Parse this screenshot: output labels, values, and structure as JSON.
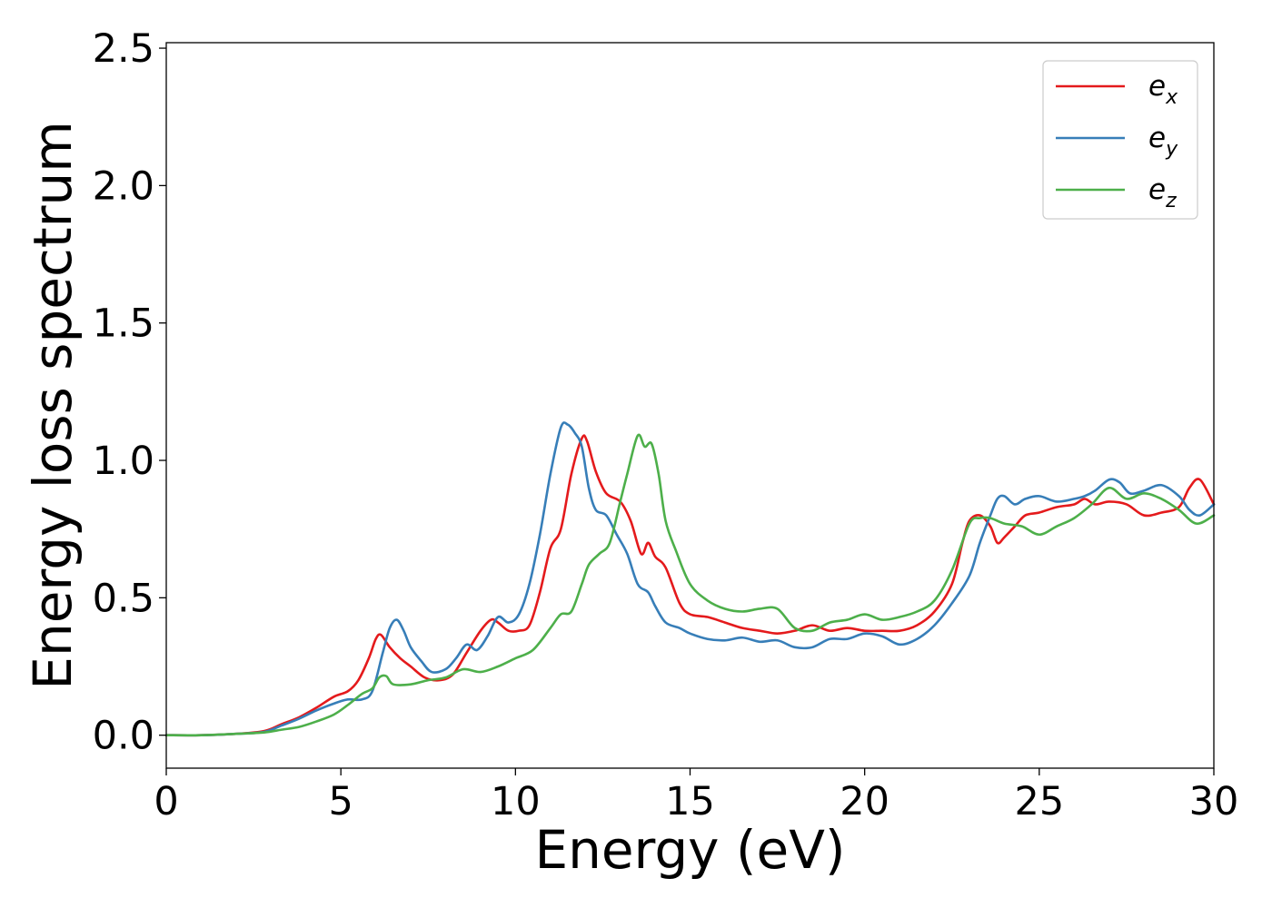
{
  "chart_data": {
    "type": "line",
    "xlabel": "Energy (eV)",
    "ylabel": "Energy loss spectrum",
    "xlim": [
      0,
      30
    ],
    "ylim": [
      -0.12,
      2.52
    ],
    "xticks": [
      0,
      5,
      10,
      15,
      20,
      25,
      30
    ],
    "xtick_labels": [
      "0",
      "5",
      "10",
      "15",
      "20",
      "25",
      "30"
    ],
    "yticks": [
      0.0,
      0.5,
      1.0,
      1.5,
      2.0,
      2.5
    ],
    "ytick_labels": [
      "0.0",
      "0.5",
      "1.0",
      "1.5",
      "2.0",
      "2.5"
    ],
    "grid": false,
    "legend_position": "top-right",
    "series": [
      {
        "name": "e_x",
        "label_base": "e",
        "label_sub": "x",
        "color": "#e41a1c",
        "x": [
          0,
          1,
          2,
          2.8,
          3.3,
          3.8,
          4.3,
          4.8,
          5.2,
          5.5,
          5.8,
          6.0,
          6.15,
          6.4,
          6.7,
          7.0,
          7.4,
          7.8,
          8.2,
          8.6,
          9.0,
          9.3,
          9.5,
          9.8,
          10.1,
          10.4,
          10.7,
          11.0,
          11.3,
          11.6,
          11.9,
          12.05,
          12.3,
          12.6,
          13.0,
          13.3,
          13.6,
          13.8,
          14.0,
          14.3,
          14.7,
          15.0,
          15.5,
          16.0,
          16.5,
          17.0,
          17.5,
          18.0,
          18.5,
          19.0,
          19.5,
          20.0,
          20.5,
          21.0,
          21.5,
          22.0,
          22.5,
          22.8,
          23.0,
          23.3,
          23.6,
          23.8,
          24.0,
          24.3,
          24.6,
          25.0,
          25.5,
          26.0,
          26.3,
          26.6,
          27.0,
          27.5,
          28.0,
          28.5,
          29.0,
          29.3,
          29.6,
          30.0
        ],
        "y": [
          0.0,
          0.0,
          0.005,
          0.015,
          0.04,
          0.065,
          0.1,
          0.14,
          0.16,
          0.2,
          0.28,
          0.35,
          0.365,
          0.32,
          0.28,
          0.25,
          0.21,
          0.2,
          0.22,
          0.3,
          0.38,
          0.42,
          0.41,
          0.38,
          0.38,
          0.4,
          0.52,
          0.68,
          0.75,
          0.95,
          1.08,
          1.07,
          0.96,
          0.88,
          0.85,
          0.78,
          0.66,
          0.7,
          0.65,
          0.61,
          0.48,
          0.44,
          0.43,
          0.41,
          0.39,
          0.38,
          0.37,
          0.38,
          0.4,
          0.38,
          0.39,
          0.38,
          0.38,
          0.38,
          0.4,
          0.45,
          0.55,
          0.7,
          0.78,
          0.8,
          0.76,
          0.7,
          0.72,
          0.76,
          0.8,
          0.81,
          0.83,
          0.84,
          0.86,
          0.84,
          0.85,
          0.84,
          0.8,
          0.81,
          0.83,
          0.9,
          0.93,
          0.84
        ]
      },
      {
        "name": "e_y",
        "label_base": "e",
        "label_sub": "y",
        "color": "#377eb8",
        "x": [
          0,
          1,
          2,
          2.8,
          3.3,
          3.8,
          4.3,
          4.8,
          5.2,
          5.6,
          5.9,
          6.2,
          6.4,
          6.6,
          6.8,
          7.0,
          7.3,
          7.6,
          8.0,
          8.3,
          8.6,
          8.9,
          9.2,
          9.5,
          9.8,
          10.1,
          10.4,
          10.7,
          11.0,
          11.3,
          11.5,
          11.7,
          11.9,
          12.1,
          12.3,
          12.6,
          12.9,
          13.2,
          13.5,
          13.8,
          14.0,
          14.3,
          14.7,
          15.0,
          15.5,
          16.0,
          16.5,
          17.0,
          17.5,
          18.0,
          18.5,
          19.0,
          19.5,
          20.0,
          20.5,
          21.0,
          21.5,
          22.0,
          22.5,
          23.0,
          23.3,
          23.6,
          23.8,
          24.0,
          24.3,
          24.6,
          25.0,
          25.5,
          26.0,
          26.3,
          26.6,
          27.0,
          27.3,
          27.6,
          28.0,
          28.5,
          29.0,
          29.3,
          29.6,
          30.0
        ],
        "y": [
          0.0,
          0.0,
          0.005,
          0.012,
          0.035,
          0.06,
          0.09,
          0.115,
          0.13,
          0.13,
          0.16,
          0.3,
          0.39,
          0.42,
          0.38,
          0.32,
          0.27,
          0.23,
          0.24,
          0.28,
          0.33,
          0.31,
          0.36,
          0.43,
          0.41,
          0.44,
          0.55,
          0.73,
          0.95,
          1.12,
          1.13,
          1.1,
          1.05,
          0.9,
          0.82,
          0.8,
          0.73,
          0.66,
          0.55,
          0.52,
          0.47,
          0.41,
          0.39,
          0.37,
          0.35,
          0.345,
          0.355,
          0.34,
          0.345,
          0.32,
          0.32,
          0.35,
          0.35,
          0.37,
          0.36,
          0.33,
          0.35,
          0.4,
          0.48,
          0.58,
          0.7,
          0.8,
          0.86,
          0.87,
          0.84,
          0.86,
          0.87,
          0.85,
          0.86,
          0.87,
          0.89,
          0.93,
          0.92,
          0.88,
          0.89,
          0.91,
          0.87,
          0.82,
          0.8,
          0.84
        ]
      },
      {
        "name": "e_z",
        "label_base": "e",
        "label_sub": "z",
        "color": "#4daf4a",
        "x": [
          0,
          1,
          2,
          2.8,
          3.3,
          3.8,
          4.3,
          4.8,
          5.2,
          5.6,
          5.9,
          6.1,
          6.3,
          6.5,
          7.0,
          7.5,
          8.0,
          8.5,
          9.0,
          9.5,
          10.0,
          10.5,
          11.0,
          11.3,
          11.6,
          11.9,
          12.1,
          12.4,
          12.7,
          13.0,
          13.2,
          13.5,
          13.7,
          13.9,
          14.1,
          14.3,
          14.6,
          15.0,
          15.5,
          16.0,
          16.5,
          17.0,
          17.5,
          18.0,
          18.5,
          19.0,
          19.5,
          20.0,
          20.5,
          21.0,
          21.5,
          22.0,
          22.5,
          23.0,
          23.3,
          23.6,
          24.0,
          24.5,
          25.0,
          25.5,
          26.0,
          26.5,
          27.0,
          27.5,
          28.0,
          28.5,
          29.0,
          29.5,
          30.0
        ],
        "y": [
          0.0,
          0.0,
          0.005,
          0.01,
          0.02,
          0.03,
          0.05,
          0.075,
          0.11,
          0.15,
          0.17,
          0.21,
          0.215,
          0.185,
          0.185,
          0.2,
          0.21,
          0.24,
          0.23,
          0.25,
          0.28,
          0.31,
          0.39,
          0.44,
          0.45,
          0.55,
          0.62,
          0.66,
          0.7,
          0.85,
          0.95,
          1.09,
          1.05,
          1.06,
          0.95,
          0.78,
          0.67,
          0.55,
          0.49,
          0.46,
          0.45,
          0.46,
          0.46,
          0.39,
          0.38,
          0.41,
          0.42,
          0.44,
          0.42,
          0.43,
          0.45,
          0.49,
          0.6,
          0.77,
          0.79,
          0.79,
          0.77,
          0.76,
          0.73,
          0.76,
          0.79,
          0.84,
          0.9,
          0.86,
          0.88,
          0.86,
          0.82,
          0.77,
          0.8
        ]
      }
    ]
  }
}
